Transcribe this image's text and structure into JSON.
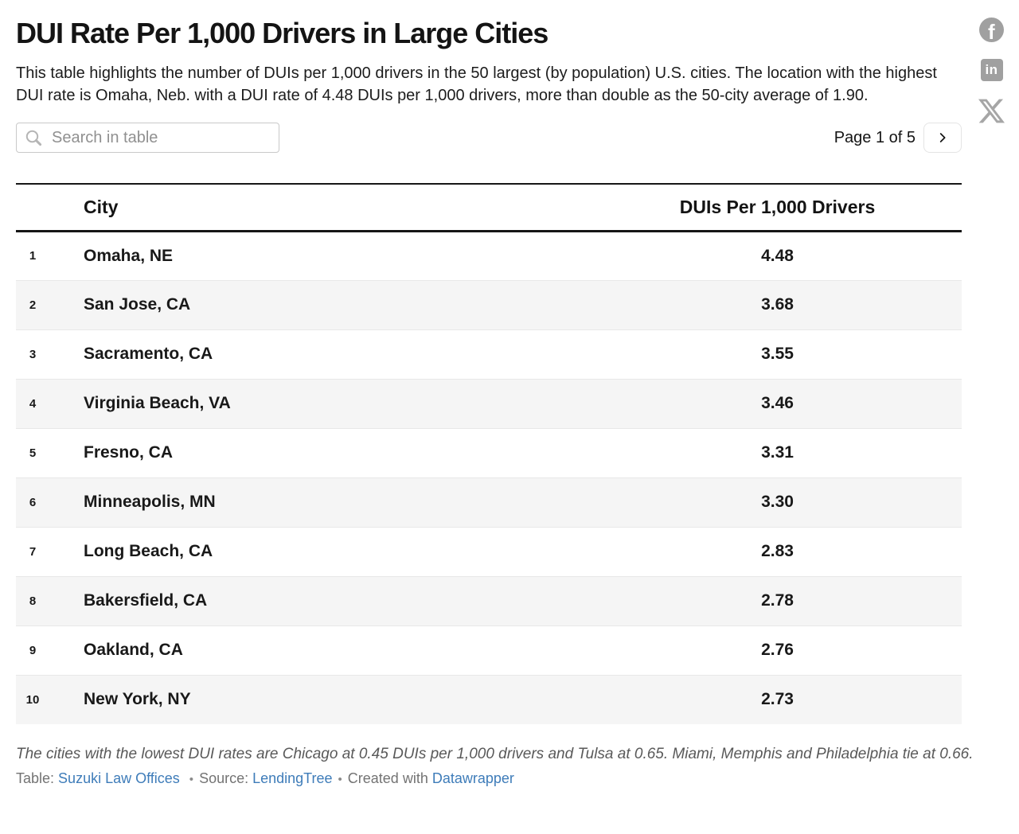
{
  "title": "DUI Rate Per 1,000 Drivers in Large Cities",
  "description": "This table highlights the number of DUIs per 1,000 drivers in the 50 largest (by population) U.S. cities. The location with the highest DUI rate is Omaha, Neb. with a DUI rate of 4.48 DUIs per 1,000 drivers, more than double as the 50-city average of 1.90.",
  "controls": {
    "search_placeholder": "Search in table",
    "page_indicator": "Page 1 of 5",
    "current_page": 1,
    "total_pages": 5
  },
  "social": {
    "facebook": "facebook-share",
    "linkedin": "linkedin-share",
    "x": "x-share",
    "facebook_glyph": "f",
    "linkedin_glyph": "in"
  },
  "chart_data": {
    "type": "table",
    "title": "DUI Rate Per 1,000 Drivers in Large Cities",
    "columns": [
      "City",
      "DUIs Per 1,000 Drivers"
    ],
    "rows": [
      {
        "rank": "1",
        "city": "Omaha, NE",
        "value": "4.48"
      },
      {
        "rank": "2",
        "city": "San Jose, CA",
        "value": "3.68"
      },
      {
        "rank": "3",
        "city": "Sacramento, CA",
        "value": "3.55"
      },
      {
        "rank": "4",
        "city": "Virginia Beach, VA",
        "value": "3.46"
      },
      {
        "rank": "5",
        "city": "Fresno, CA",
        "value": "3.31"
      },
      {
        "rank": "6",
        "city": "Minneapolis, MN",
        "value": "3.30"
      },
      {
        "rank": "7",
        "city": "Long Beach, CA",
        "value": "2.83"
      },
      {
        "rank": "8",
        "city": "Bakersfield, CA",
        "value": "2.78"
      },
      {
        "rank": "9",
        "city": "Oakland, CA",
        "value": "2.76"
      },
      {
        "rank": "10",
        "city": "New York, NY",
        "value": "2.73"
      }
    ],
    "highest": {
      "city": "Omaha, NE",
      "value": 4.48
    },
    "average_50_city": 1.9
  },
  "footer": {
    "footnote": "The cities with the lowest DUI rates are Chicago at 0.45 DUIs per 1,000 drivers and Tulsa at 0.65. Miami, Memphis and Philadelphia tie at 0.66.",
    "table_label": "Table:",
    "table_link": "Suzuki Law Offices",
    "source_label": "Source:",
    "source_link": "LendingTree",
    "created_label": "Created with",
    "created_link": "Datawrapper",
    "separator": "•"
  },
  "colors": {
    "link_blue": "#3e7cb9",
    "row_stripe": "#f5f5f5",
    "header_border": "#161616",
    "icon_gray": "#a0a0a0",
    "footnote_gray": "#595959"
  }
}
